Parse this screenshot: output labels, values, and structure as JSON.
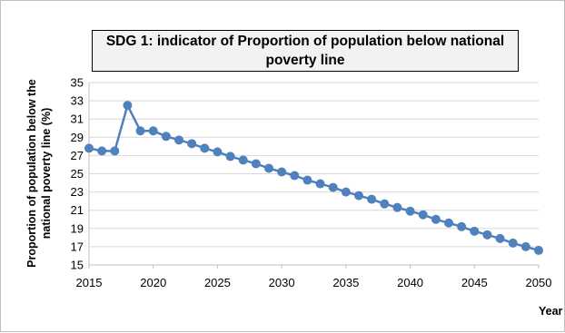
{
  "chart_data": {
    "type": "line",
    "title": "SDG 1: indicator of Proportion of population below national poverty line",
    "ylabel_line1": "Proportion of population below the",
    "ylabel_line2": "national poverty line (%)",
    "xlabel": "Year",
    "ylim": [
      15,
      35
    ],
    "xlim": [
      2015,
      2050
    ],
    "yticks": [
      15,
      17,
      19,
      21,
      23,
      25,
      27,
      29,
      31,
      33,
      35
    ],
    "xticks": [
      2015,
      2020,
      2025,
      2030,
      2035,
      2040,
      2045,
      2050
    ],
    "grid": "horizontal",
    "color": "#4f81bd",
    "series": [
      {
        "x": [
          2015,
          2016,
          2017,
          2018,
          2019,
          2020,
          2021,
          2022,
          2023,
          2024,
          2025,
          2026,
          2027,
          2028,
          2029,
          2030,
          2031,
          2032,
          2033,
          2034,
          2035,
          2036,
          2037,
          2038,
          2039,
          2040,
          2041,
          2042,
          2043,
          2044,
          2045,
          2046,
          2047,
          2048,
          2049,
          2050
        ],
        "values": [
          27.8,
          27.5,
          27.5,
          32.5,
          29.7,
          29.7,
          29.1,
          28.7,
          28.3,
          27.8,
          27.4,
          26.9,
          26.5,
          26.1,
          25.6,
          25.2,
          24.8,
          24.3,
          23.9,
          23.5,
          23.0,
          22.6,
          22.2,
          21.7,
          21.3,
          20.9,
          20.5,
          20.0,
          19.6,
          19.2,
          18.7,
          18.3,
          17.9,
          17.4,
          17.0,
          16.6
        ]
      }
    ]
  }
}
